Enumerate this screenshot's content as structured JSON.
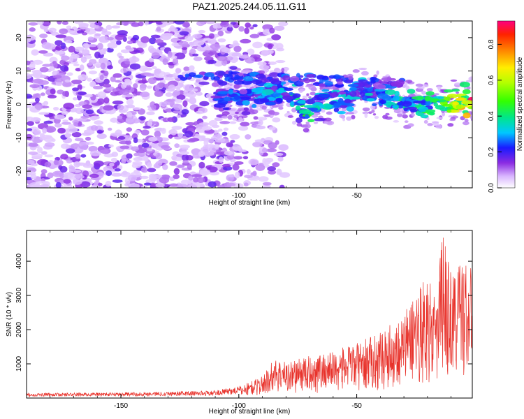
{
  "title": "PAZ1.2025.244.05.11.G11",
  "chart_data": [
    {
      "type": "heatmap",
      "name": "spectrogram",
      "xlabel": "Height of straight line (km)",
      "ylabel": "Frequency (Hz)",
      "xlim": [
        -190,
        -1
      ],
      "ylim": [
        -25,
        25
      ],
      "xticks": [
        -150,
        -100,
        -50
      ],
      "yticks": [
        -20,
        -10,
        0,
        10,
        20
      ],
      "colorbar": {
        "label": "Normalized spectral amplitude",
        "range": [
          0,
          0.93
        ],
        "ticks": [
          0.0,
          0.2,
          0.4,
          0.6,
          0.8
        ]
      },
      "ridge": [
        {
          "x": -110,
          "y": 2.5,
          "amp": 0.25
        },
        {
          "x": -100,
          "y": 2.0,
          "amp": 0.3
        },
        {
          "x": -90,
          "y": 3.0,
          "amp": 0.35
        },
        {
          "x": -80,
          "y": 4.0,
          "amp": 0.35
        },
        {
          "x": -72,
          "y": -2.0,
          "amp": 0.5
        },
        {
          "x": -65,
          "y": 1.0,
          "amp": 0.4
        },
        {
          "x": -55,
          "y": 2.0,
          "amp": 0.35
        },
        {
          "x": -48,
          "y": 4.0,
          "amp": 0.35
        },
        {
          "x": -38,
          "y": 2.0,
          "amp": 0.4
        },
        {
          "x": -28,
          "y": 0.0,
          "amp": 0.4
        },
        {
          "x": -18,
          "y": 0.0,
          "amp": 0.5
        },
        {
          "x": -10,
          "y": 0.5,
          "amp": 0.6
        },
        {
          "x": -3,
          "y": 1.0,
          "amp": 0.9
        }
      ]
    },
    {
      "type": "line",
      "name": "snr",
      "xlabel": "Height of straight line (km)",
      "ylabel": "SNR (10 * v/v)",
      "xlim": [
        -190,
        -1
      ],
      "ylim": [
        0,
        4900
      ],
      "xticks": [
        -150,
        -100,
        -50
      ],
      "yticks": [
        1000,
        2000,
        3000,
        4000
      ],
      "series": [
        {
          "name": "SNR",
          "color": "#e8322b",
          "envelope_x": [
            -190,
            -150,
            -110,
            -100,
            -90,
            -85,
            -80,
            -60,
            -50,
            -40,
            -30,
            -25,
            -20,
            -16,
            -14,
            -10,
            -5,
            -1
          ],
          "envelope_y": [
            130,
            150,
            200,
            320,
            600,
            1100,
            1000,
            1300,
            1500,
            1800,
            2300,
            3000,
            3400,
            2500,
            4700,
            3500,
            3900,
            3500
          ]
        }
      ]
    }
  ]
}
